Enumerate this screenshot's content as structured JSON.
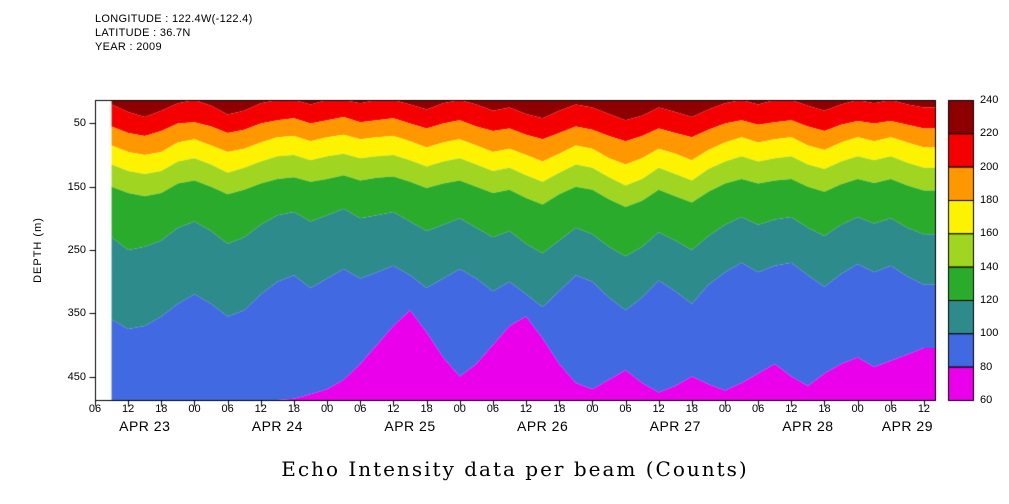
{
  "header": {
    "lines": [
      "LONGITUDE : 122.4W(-122.4)",
      "LATITUDE : 36.7N",
      "YEAR : 2009"
    ]
  },
  "chart_data": {
    "type": "heatmap",
    "title": "Echo Intensity data per beam (Counts)",
    "ylabel": "DEPTH (m)",
    "units": "Counts",
    "y_ticks": [
      50,
      150,
      250,
      350,
      450
    ],
    "depth_range": [
      13,
      487
    ],
    "time_axis": {
      "range_hours": [
        6,
        158
      ],
      "tick_start": 6,
      "tick_step": 6,
      "tick_end": 156,
      "labels_by_mod": {
        "0": "00",
        "6": "06",
        "12": "12",
        "18": "18"
      },
      "day_labels": [
        {
          "label": "APR 23",
          "t": 15
        },
        {
          "label": "APR 24",
          "t": 39
        },
        {
          "label": "APR 25",
          "t": 63
        },
        {
          "label": "APR 26",
          "t": 87
        },
        {
          "label": "APR 27",
          "t": 111
        },
        {
          "label": "APR 28",
          "t": 135
        },
        {
          "label": "APR 29",
          "t": 153
        }
      ]
    },
    "colorbar": {
      "value_range": [
        60,
        240
      ],
      "labels": [
        "240",
        "220",
        "200",
        "180",
        "160",
        "140",
        "120",
        "100",
        "80",
        "60"
      ],
      "colors": [
        "#8e0000",
        "#f40000",
        "#ff9800",
        "#fdf300",
        "#a0d622",
        "#2bab2b",
        "#2d8b8b",
        "#4169e1",
        "#ea00ea"
      ]
    },
    "x_hours": [
      9,
      12,
      15,
      18,
      21,
      24,
      27,
      30,
      33,
      36,
      39,
      42,
      45,
      48,
      51,
      54,
      57,
      60,
      63,
      66,
      69,
      72,
      75,
      78,
      81,
      84,
      87,
      90,
      93,
      96,
      99,
      102,
      105,
      108,
      111,
      114,
      117,
      120,
      123,
      126,
      129,
      132,
      135,
      138,
      141,
      144,
      147,
      150,
      153,
      156
    ],
    "boundaries": {
      "surface_depth": 13,
      "bottom_depth": 487,
      "levels": [
        220,
        200,
        180,
        160,
        140,
        120,
        100,
        80
      ],
      "depths_by_level": {
        "220": [
          20,
          32,
          40,
          30,
          18,
          13,
          22,
          36,
          30,
          18,
          13,
          13,
          20,
          13,
          13,
          18,
          13,
          13,
          20,
          28,
          18,
          13,
          20,
          30,
          25,
          35,
          42,
          30,
          20,
          25,
          35,
          45,
          38,
          25,
          32,
          40,
          28,
          18,
          13,
          20,
          13,
          13,
          22,
          30,
          20,
          13,
          18,
          13,
          20,
          25
        ],
        "200": [
          55,
          65,
          70,
          62,
          50,
          48,
          55,
          65,
          60,
          50,
          45,
          42,
          50,
          45,
          40,
          48,
          45,
          42,
          50,
          58,
          50,
          45,
          55,
          62,
          58,
          68,
          75,
          65,
          55,
          60,
          70,
          78,
          70,
          58,
          65,
          72,
          60,
          50,
          45,
          52,
          48,
          45,
          55,
          62,
          52,
          46,
          50,
          46,
          52,
          58
        ],
        "180": [
          85,
          95,
          100,
          95,
          80,
          75,
          85,
          95,
          90,
          80,
          72,
          70,
          78,
          72,
          68,
          75,
          72,
          70,
          78,
          88,
          80,
          75,
          85,
          95,
          90,
          100,
          110,
          98,
          85,
          90,
          105,
          115,
          105,
          90,
          98,
          108,
          92,
          80,
          72,
          80,
          75,
          72,
          85,
          92,
          80,
          72,
          78,
          72,
          80,
          88
        ],
        "160": [
          115,
          125,
          130,
          125,
          110,
          105,
          115,
          128,
          120,
          110,
          102,
          100,
          108,
          102,
          98,
          105,
          102,
          100,
          108,
          118,
          110,
          105,
          115,
          125,
          120,
          132,
          142,
          128,
          115,
          120,
          135,
          148,
          138,
          120,
          130,
          140,
          122,
          110,
          102,
          110,
          105,
          102,
          115,
          122,
          110,
          102,
          108,
          102,
          112,
          120
        ],
        "140": [
          150,
          160,
          165,
          160,
          145,
          140,
          150,
          162,
          155,
          145,
          138,
          135,
          142,
          138,
          132,
          140,
          136,
          134,
          142,
          152,
          145,
          140,
          150,
          160,
          155,
          168,
          178,
          162,
          150,
          155,
          170,
          182,
          172,
          155,
          165,
          175,
          158,
          145,
          138,
          145,
          140,
          138,
          150,
          158,
          146,
          138,
          144,
          138,
          148,
          156
        ],
        "120": [
          230,
          250,
          245,
          235,
          215,
          205,
          220,
          240,
          230,
          210,
          195,
          190,
          205,
          195,
          185,
          200,
          195,
          190,
          205,
          220,
          210,
          200,
          215,
          230,
          220,
          240,
          255,
          235,
          215,
          225,
          245,
          260,
          245,
          222,
          235,
          250,
          228,
          210,
          198,
          210,
          202,
          198,
          215,
          228,
          210,
          198,
          208,
          200,
          215,
          225
        ],
        "100": [
          360,
          375,
          370,
          355,
          335,
          320,
          335,
          355,
          345,
          320,
          300,
          290,
          310,
          295,
          280,
          295,
          285,
          275,
          290,
          310,
          295,
          280,
          295,
          315,
          300,
          320,
          340,
          315,
          290,
          300,
          325,
          345,
          325,
          298,
          315,
          335,
          305,
          285,
          270,
          285,
          275,
          270,
          290,
          308,
          288,
          272,
          285,
          275,
          292,
          305
        ],
        "80": [
          500,
          500,
          500,
          500,
          500,
          498,
          495,
          498,
          500,
          495,
          490,
          485,
          478,
          470,
          455,
          430,
          400,
          370,
          345,
          380,
          420,
          450,
          430,
          400,
          370,
          355,
          390,
          430,
          460,
          470,
          455,
          440,
          460,
          475,
          465,
          450,
          462,
          472,
          460,
          445,
          430,
          450,
          465,
          445,
          430,
          420,
          435,
          425,
          415,
          405
        ]
      }
    }
  }
}
